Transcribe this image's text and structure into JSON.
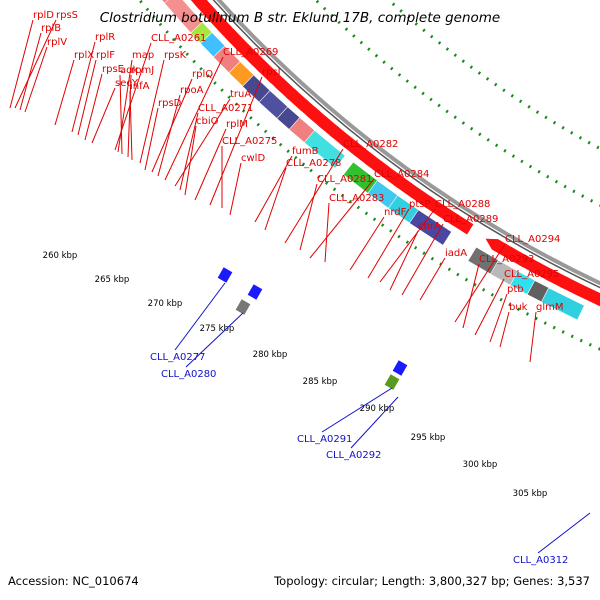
{
  "title": "Clostridium botulinum B str. Eklund 17B, complete genome",
  "footer": {
    "accession": "Accession: NC_010674",
    "summary": "Topology: circular; Length: 3,800,327 bp; Genes: 3,537"
  },
  "colors": {
    "forward_gene": "#ff1010",
    "reverse_gene": "#1a1aff",
    "label_forward": "#e00000",
    "label_reverse": "#1010cc",
    "tick": "#1a8a1a",
    "backbone": "#999999"
  },
  "kbp_labels": [
    "260 kbp",
    "265 kbp",
    "270 kbp",
    "275 kbp",
    "280 kbp",
    "285 kbp",
    "290 kbp",
    "295 kbp",
    "300 kbp",
    "305 kbp"
  ],
  "forward_labels": [
    "rplD",
    "rpsS",
    "rplB",
    "rplV",
    "rplX",
    "rplR",
    "rplF",
    "rpsE",
    "secY",
    "CLL_A0261",
    "map",
    "adk",
    "rpmJ",
    "infA",
    "rpsK",
    "rpsD",
    "rplQ",
    "rpoA",
    "CLL_A0269",
    "truA",
    "CLL_A0271",
    "cbiO",
    "rplM",
    "rpsI",
    "CLL_A0275",
    "cwlD",
    "fumB",
    "CLL_A0278",
    "CLL_A0282",
    "CLL_A0281",
    "CLL_A0284",
    "CLL_A0283",
    "nrdF",
    "ptsP",
    "CLL_A0288",
    "chrA",
    "CLL_A0289",
    "iadA",
    "CLL_A0294",
    "CLL_A0293",
    "CLL_A0295",
    "ptb",
    "buk",
    "glmM"
  ],
  "reverse_labels": [
    "CLL_A0277",
    "CLL_A0280",
    "CLL_A0291",
    "CLL_A0292",
    "CLL_A0312"
  ]
}
